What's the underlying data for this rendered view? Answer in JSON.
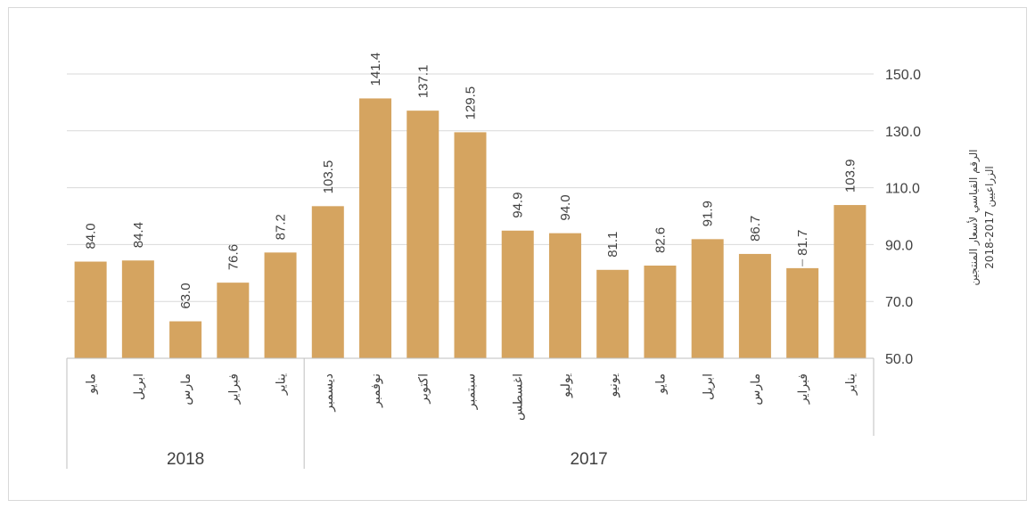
{
  "chart_data": {
    "type": "bar",
    "title": "",
    "xlabel": "",
    "ylabel": "الرقم القياسي لأسعار المنتجين الزراعيين 2017-2018",
    "ylabel_lines": [
      "الرقم القياسي لأسعار المنتجين",
      "الزراعيين 2017-2018"
    ],
    "y_axis_position": "right",
    "ylim": [
      50,
      150
    ],
    "yticks": [
      "50.0",
      "70.0",
      "90.0",
      "110.0",
      "130.0",
      "150.0"
    ],
    "grid": true,
    "bar_color": "#d5a460",
    "categories": [
      "مايو",
      "ابريل",
      "مارس",
      "فبراير",
      "يناير",
      "ديسمبر",
      "نوفمبر",
      "اكتوبر",
      "سبتمبر",
      "اغسطس",
      "يوليو",
      "يونيو",
      "مايو",
      "ابريل",
      "مارس",
      "فبراير",
      "يناير"
    ],
    "values": [
      84.0,
      84.4,
      63.0,
      76.6,
      87.2,
      103.5,
      141.4,
      137.1,
      129.5,
      94.9,
      94.0,
      81.1,
      82.6,
      91.9,
      86.7,
      81.7,
      103.9
    ],
    "value_labels": [
      "84.0",
      "84.4",
      "63.0",
      "76.6",
      "87.2",
      "103.5",
      "141.4",
      "137.1",
      "129.5",
      "94.9",
      "94.0",
      "81.1",
      "82.6",
      "91.9",
      "86.7",
      "81.7",
      "103.9"
    ],
    "groups": [
      {
        "label": "2018",
        "count": 5
      },
      {
        "label": "2017",
        "count": 12
      }
    ]
  }
}
